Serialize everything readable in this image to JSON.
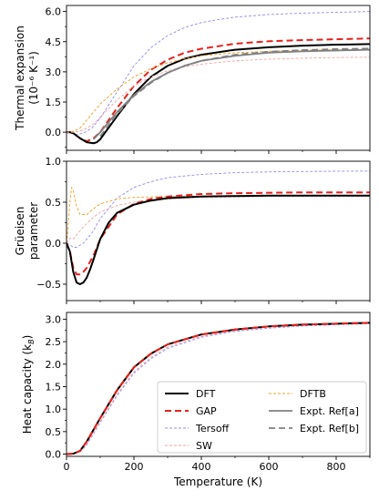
{
  "chart_data": [
    {
      "type": "line",
      "ylabel": "Thermal expansion",
      "ylabel_line2": "(10⁻⁶ K⁻¹)",
      "xlim": [
        0,
        900
      ],
      "ylim": [
        -0.9,
        6.3
      ],
      "yticks": [
        "0.0",
        "1.5",
        "3.0",
        "4.5",
        "6.0"
      ],
      "ytick_values": [
        0.0,
        1.5,
        3.0,
        4.5,
        6.0
      ],
      "series": [
        {
          "key": "tersoff",
          "x": [
            0,
            10,
            20,
            30,
            50,
            75,
            100,
            150,
            200,
            250,
            300,
            350,
            400,
            450,
            500,
            600,
            700,
            800,
            900
          ],
          "y": [
            0.0,
            0.0,
            -0.1,
            -0.12,
            -0.05,
            0.2,
            0.7,
            2.0,
            3.3,
            4.2,
            4.8,
            5.2,
            5.45,
            5.6,
            5.72,
            5.85,
            5.92,
            5.96,
            6.0
          ]
        },
        {
          "key": "gap",
          "x": [
            0,
            10,
            20,
            40,
            60,
            80,
            100,
            150,
            200,
            250,
            300,
            350,
            400,
            500,
            600,
            700,
            800,
            900
          ],
          "y": [
            0.0,
            0.0,
            -0.05,
            -0.3,
            -0.45,
            -0.3,
            0.0,
            1.2,
            2.3,
            3.1,
            3.6,
            3.95,
            4.15,
            4.4,
            4.52,
            4.58,
            4.62,
            4.66
          ]
        },
        {
          "key": "dft",
          "x": [
            0,
            10,
            20,
            40,
            60,
            80,
            90,
            100,
            150,
            200,
            250,
            300,
            350,
            400,
            500,
            600,
            700,
            800,
            900
          ],
          "y": [
            0.0,
            0.0,
            -0.05,
            -0.3,
            -0.5,
            -0.55,
            -0.5,
            -0.35,
            0.8,
            1.9,
            2.75,
            3.3,
            3.65,
            3.85,
            4.1,
            4.22,
            4.3,
            4.35,
            4.38
          ]
        },
        {
          "key": "dftb",
          "x": [
            0,
            10,
            20,
            40,
            60,
            80,
            100,
            150,
            200,
            250,
            300,
            350,
            400,
            500,
            600,
            700,
            800,
            900
          ],
          "y": [
            0.0,
            0.0,
            0.05,
            0.2,
            0.6,
            1.0,
            1.4,
            2.15,
            2.75,
            3.15,
            3.45,
            3.65,
            3.8,
            3.95,
            4.02,
            4.07,
            4.1,
            4.12
          ]
        },
        {
          "key": "sw",
          "x": [
            0,
            10,
            20,
            40,
            60,
            80,
            100,
            150,
            200,
            250,
            300,
            350,
            400,
            500,
            600,
            700,
            800,
            900
          ],
          "y": [
            0.0,
            0.0,
            0.0,
            0.05,
            0.2,
            0.4,
            0.75,
            1.6,
            2.3,
            2.75,
            3.05,
            3.25,
            3.38,
            3.55,
            3.63,
            3.68,
            3.71,
            3.73
          ]
        },
        {
          "key": "exp_a",
          "x": [
            80,
            100,
            125,
            150,
            200,
            250,
            300,
            350,
            400,
            500,
            600,
            700,
            800,
            900
          ],
          "y": [
            -0.35,
            0.0,
            0.5,
            1.0,
            1.85,
            2.5,
            2.95,
            3.3,
            3.55,
            3.8,
            3.95,
            4.02,
            4.06,
            4.1
          ]
        },
        {
          "key": "exp_b",
          "x": [
            100,
            125,
            150,
            200,
            250,
            300,
            350,
            400,
            500,
            600,
            700,
            800,
            900
          ],
          "y": [
            -0.2,
            0.35,
            0.9,
            1.8,
            2.45,
            2.95,
            3.3,
            3.55,
            3.85,
            4.0,
            4.08,
            4.13,
            4.16
          ]
        }
      ]
    },
    {
      "type": "line",
      "ylabel": "Grüeisen",
      "ylabel_line2": "parameter",
      "xlim": [
        0,
        900
      ],
      "ylim": [
        -0.7,
        1.0
      ],
      "yticks": [
        "−0.5",
        "0.0",
        "0.5",
        "1.0"
      ],
      "ytick_values": [
        -0.5,
        0.0,
        0.5,
        1.0
      ],
      "series": [
        {
          "key": "tersoff",
          "x": [
            0,
            10,
            20,
            30,
            50,
            75,
            100,
            150,
            200,
            250,
            300,
            400,
            500,
            600,
            700,
            800,
            900
          ],
          "y": [
            0.0,
            -0.02,
            -0.05,
            -0.05,
            0.0,
            0.12,
            0.3,
            0.55,
            0.68,
            0.75,
            0.8,
            0.84,
            0.86,
            0.87,
            0.875,
            0.878,
            0.88
          ]
        },
        {
          "key": "dftb",
          "x": [
            0,
            5,
            10,
            15,
            20,
            30,
            40,
            60,
            80,
            100,
            150,
            200,
            300,
            400,
            500,
            600,
            700,
            800,
            900
          ],
          "y": [
            0.0,
            0.2,
            0.5,
            0.68,
            0.64,
            0.45,
            0.35,
            0.35,
            0.42,
            0.48,
            0.54,
            0.56,
            0.57,
            0.575,
            0.58,
            0.58,
            0.58,
            0.58,
            0.58
          ]
        },
        {
          "key": "sw",
          "x": [
            0,
            5,
            10,
            20,
            30,
            50,
            75,
            100,
            150,
            200,
            300,
            400,
            500,
            600,
            700,
            800,
            900
          ],
          "y": [
            0.0,
            0.03,
            0.06,
            0.05,
            0.1,
            0.2,
            0.3,
            0.38,
            0.46,
            0.5,
            0.54,
            0.56,
            0.565,
            0.57,
            0.57,
            0.57,
            0.57
          ]
        },
        {
          "key": "gap",
          "x": [
            0,
            10,
            20,
            30,
            40,
            50,
            60,
            80,
            100,
            150,
            200,
            250,
            300,
            400,
            500,
            600,
            700,
            800,
            900
          ],
          "y": [
            0.0,
            -0.1,
            -0.3,
            -0.38,
            -0.38,
            -0.35,
            -0.3,
            -0.15,
            0.05,
            0.35,
            0.48,
            0.54,
            0.57,
            0.6,
            0.61,
            0.615,
            0.62,
            0.62,
            0.62
          ]
        },
        {
          "key": "dft",
          "x": [
            0,
            10,
            20,
            30,
            40,
            50,
            60,
            70,
            80,
            100,
            125,
            150,
            200,
            250,
            300,
            400,
            500,
            600,
            700,
            800,
            900
          ],
          "y": [
            0.0,
            -0.1,
            -0.35,
            -0.48,
            -0.5,
            -0.48,
            -0.42,
            -0.32,
            -0.2,
            0.05,
            0.25,
            0.37,
            0.47,
            0.52,
            0.55,
            0.57,
            0.575,
            0.58,
            0.58,
            0.58,
            0.58
          ]
        }
      ]
    },
    {
      "type": "line",
      "ylabel": "Heat capacity (k",
      "ylabel_sub": "B",
      "ylabel_end": ")",
      "xlabel": "Temperature (K)",
      "xlim": [
        0,
        900
      ],
      "ylim": [
        -0.05,
        3.15
      ],
      "xticks": [
        "0",
        "200",
        "400",
        "600",
        "800"
      ],
      "xtick_values": [
        0,
        200,
        400,
        600,
        800
      ],
      "yticks": [
        "0.0",
        "0.5",
        "1.0",
        "1.5",
        "2.0",
        "2.5",
        "3.0"
      ],
      "ytick_values": [
        0.0,
        0.5,
        1.0,
        1.5,
        2.0,
        2.5,
        3.0
      ],
      "series": [
        {
          "key": "tersoff",
          "x": [
            0,
            20,
            40,
            60,
            80,
            100,
            150,
            200,
            250,
            300,
            400,
            500,
            600,
            700,
            800,
            900
          ],
          "y": [
            0.0,
            0.01,
            0.05,
            0.2,
            0.45,
            0.7,
            1.3,
            1.8,
            2.12,
            2.35,
            2.6,
            2.73,
            2.8,
            2.85,
            2.88,
            2.9
          ]
        },
        {
          "key": "sw",
          "x": [
            0,
            20,
            40,
            60,
            80,
            100,
            150,
            200,
            250,
            300,
            400,
            500,
            600,
            700,
            800,
            900
          ],
          "y": [
            0.0,
            0.01,
            0.06,
            0.22,
            0.47,
            0.72,
            1.33,
            1.83,
            2.15,
            2.38,
            2.62,
            2.75,
            2.82,
            2.86,
            2.89,
            2.91
          ]
        },
        {
          "key": "dftb",
          "x": [
            0,
            20,
            40,
            60,
            80,
            100,
            150,
            200,
            250,
            300,
            400,
            500,
            600,
            700,
            800,
            900
          ],
          "y": [
            0.0,
            0.01,
            0.08,
            0.3,
            0.56,
            0.82,
            1.45,
            1.95,
            2.25,
            2.45,
            2.67,
            2.78,
            2.84,
            2.88,
            2.9,
            2.92
          ]
        },
        {
          "key": "dft",
          "x": [
            0,
            20,
            40,
            60,
            80,
            100,
            150,
            200,
            250,
            300,
            400,
            500,
            600,
            700,
            800,
            900
          ],
          "y": [
            0.0,
            0.01,
            0.07,
            0.28,
            0.54,
            0.8,
            1.42,
            1.93,
            2.23,
            2.44,
            2.66,
            2.77,
            2.84,
            2.88,
            2.9,
            2.92
          ]
        },
        {
          "key": "gap",
          "x": [
            0,
            20,
            40,
            60,
            80,
            100,
            150,
            200,
            250,
            300,
            400,
            500,
            600,
            700,
            800,
            900
          ],
          "y": [
            0.0,
            0.01,
            0.07,
            0.28,
            0.54,
            0.8,
            1.42,
            1.93,
            2.23,
            2.44,
            2.66,
            2.77,
            2.84,
            2.88,
            2.9,
            2.92
          ]
        }
      ]
    }
  ],
  "styles": {
    "dft": {
      "color": "#000000",
      "dash": "",
      "width": 2.0
    },
    "gap": {
      "color": "#e8201c",
      "dash": "7,4",
      "width": 2.0
    },
    "tersoff": {
      "color": "#8c8cf0",
      "dash": "3,2",
      "width": 0.9
    },
    "sw": {
      "color": "#f0a0a0",
      "dash": "3,2",
      "width": 0.9
    },
    "dftb": {
      "color": "#f0a020",
      "dash": "3,2",
      "width": 0.9
    },
    "exp_a": {
      "color": "#808080",
      "dash": "",
      "width": 1.8
    },
    "exp_b": {
      "color": "#808080",
      "dash": "7,4",
      "width": 1.8
    }
  },
  "legend": {
    "placement": "lower-right",
    "entries": [
      {
        "key": "dft",
        "label": "DFT"
      },
      {
        "key": "dftb",
        "label": "DFTB"
      },
      {
        "key": "gap",
        "label": "GAP"
      },
      {
        "key": "exp_a",
        "label": "Expt. Ref[a]"
      },
      {
        "key": "tersoff",
        "label": "Tersoff"
      },
      {
        "key": "exp_b",
        "label": "Expt. Ref[b]"
      },
      {
        "key": "sw",
        "label": "SW"
      }
    ]
  }
}
